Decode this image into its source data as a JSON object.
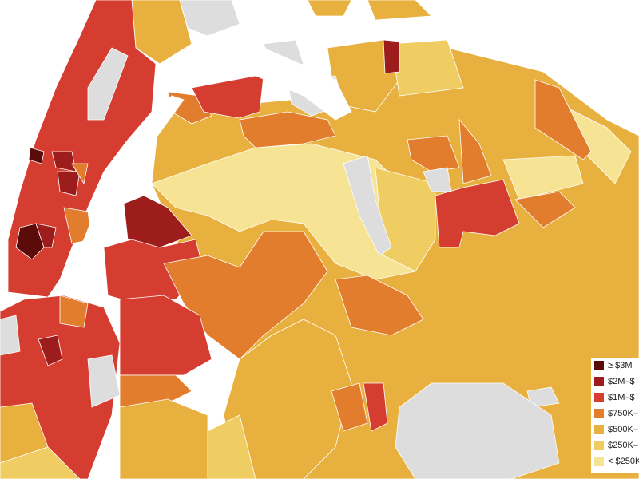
{
  "legend": {
    "items": [
      {
        "label": "≥ $3M",
        "color": "#5c0b0b"
      },
      {
        "label": "$2M–$",
        "color": "#9c1d1b"
      },
      {
        "label": "$1M–$",
        "color": "#d43d30"
      },
      {
        "label": "$750K–",
        "color": "#e27d2e"
      },
      {
        "label": "$500K–",
        "color": "#e8b13f"
      },
      {
        "label": "$250K–",
        "color": "#efcd62"
      },
      {
        "label": "< $250K",
        "color": "#f6e394"
      }
    ]
  }
}
